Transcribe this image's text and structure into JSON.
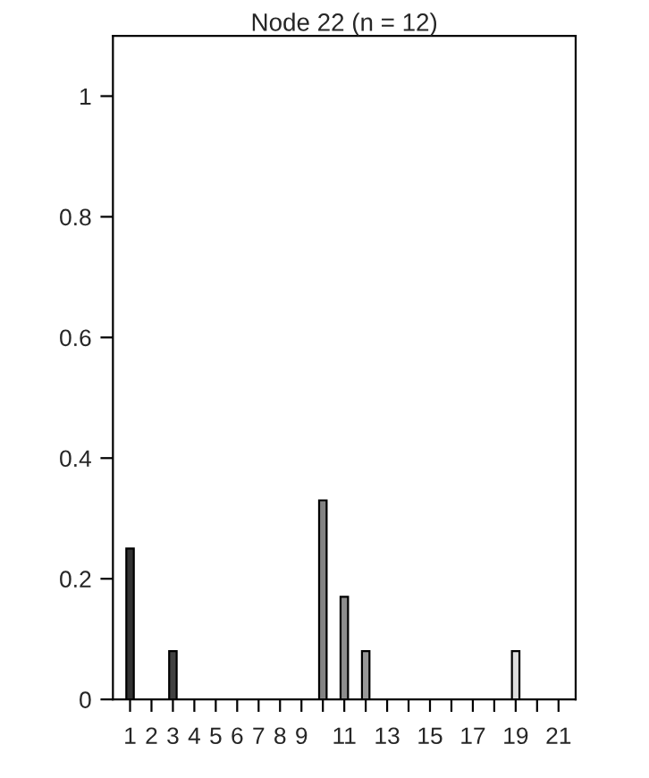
{
  "chart_data": {
    "type": "bar",
    "title": "Node 22 (n = 12)",
    "categories": [
      "1",
      "2",
      "3",
      "4",
      "5",
      "6",
      "7",
      "8",
      "9",
      null,
      "11",
      null,
      "13",
      null,
      "15",
      null,
      "17",
      null,
      "19",
      null,
      "21"
    ],
    "values": [
      0.25,
      0,
      0.08,
      0,
      0,
      0,
      0,
      0,
      0,
      0.33,
      0.17,
      0.08,
      0,
      0,
      0,
      0,
      0,
      0,
      0.08,
      0,
      0
    ],
    "colors": [
      "#333333",
      null,
      "#424242",
      null,
      null,
      null,
      null,
      null,
      null,
      "#838383",
      "#8d8d8d",
      "#979797",
      null,
      null,
      null,
      null,
      null,
      null,
      "#dcdcdc",
      null,
      null
    ],
    "ylim": [
      0,
      1.1
    ],
    "yticks": [
      0,
      0.2,
      0.4,
      0.6,
      0.8,
      1
    ],
    "grid": false
  }
}
